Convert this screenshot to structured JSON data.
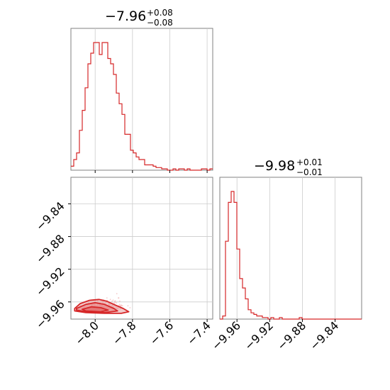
{
  "chart_data": {
    "type": "corner",
    "parameters": [
      {
        "title_main": "−7.96",
        "title_plus": "+0.08",
        "title_minus": "−0.08",
        "range": [
          -8.13,
          -7.37
        ],
        "ticks": [
          -8.0,
          -7.8,
          -7.6,
          -7.4
        ],
        "tick_labels": [
          "−8.0",
          "−7.8",
          "−7.6",
          "−7.4"
        ]
      },
      {
        "title_main": "−9.98",
        "title_plus": "+0.01",
        "title_minus": "−0.01",
        "range": [
          -9.981,
          -9.8075
        ],
        "ticks": [
          -9.96,
          -9.92,
          -9.88,
          -9.84
        ],
        "tick_labels": [
          "−9.96",
          "−9.92",
          "−9.88",
          "−9.84"
        ]
      }
    ],
    "hist1": {
      "bin_start": -8.13,
      "bin_width": 0.0152,
      "values": [
        3,
        8,
        13,
        30,
        45,
        62,
        80,
        88,
        96,
        96,
        87,
        96,
        96,
        84,
        80,
        72,
        58,
        50,
        42,
        27,
        27,
        15,
        13,
        10,
        8,
        8,
        4,
        4,
        4,
        3,
        2,
        2,
        1,
        1,
        0,
        0,
        1,
        0,
        1,
        1,
        0,
        1,
        0,
        0,
        0,
        0,
        1,
        1,
        0,
        1
      ]
    },
    "hist2": {
      "bin_start": -9.981,
      "bin_width": 0.00347,
      "values": [
        0,
        2,
        50,
        75,
        82,
        75,
        45,
        26,
        20,
        13,
        6,
        4,
        3,
        2,
        2,
        1,
        1,
        0,
        1,
        0,
        0,
        1,
        0,
        0,
        0,
        0,
        0,
        0,
        1,
        0,
        0,
        0,
        0,
        0,
        0,
        0,
        0,
        0,
        0,
        0,
        0,
        0,
        0,
        0,
        0,
        0,
        0,
        0,
        0,
        0
      ]
    },
    "joint_contours": [
      {
        "level": "outer",
        "points": [
          [
            -8.11,
            -9.968
          ],
          [
            -8.08,
            -9.962
          ],
          [
            -8.03,
            -9.958
          ],
          [
            -7.98,
            -9.957
          ],
          [
            -7.94,
            -9.959
          ],
          [
            -7.9,
            -9.963
          ],
          [
            -7.85,
            -9.968
          ],
          [
            -7.82,
            -9.972
          ],
          [
            -7.86,
            -9.974
          ],
          [
            -7.95,
            -9.974
          ],
          [
            -8.05,
            -9.973
          ],
          [
            -8.11,
            -9.971
          ]
        ]
      },
      {
        "level": "middle",
        "points": [
          [
            -8.1,
            -9.968
          ],
          [
            -8.05,
            -9.963
          ],
          [
            -8.0,
            -9.961
          ],
          [
            -7.95,
            -9.963
          ],
          [
            -7.9,
            -9.968
          ],
          [
            -7.88,
            -9.971
          ],
          [
            -7.95,
            -9.973
          ],
          [
            -8.05,
            -9.972
          ],
          [
            -8.1,
            -9.97
          ]
        ]
      },
      {
        "level": "inner",
        "points": [
          [
            -8.07,
            -9.969
          ],
          [
            -8.02,
            -9.966
          ],
          [
            -7.97,
            -9.967
          ],
          [
            -7.93,
            -9.97
          ],
          [
            -7.97,
            -9.972
          ],
          [
            -8.05,
            -9.971
          ]
        ]
      }
    ],
    "joint_points_seed": 7,
    "colors": {
      "line": "#d62728",
      "fill": "#e8a0a0",
      "points": "#f2b8b8",
      "axes": "#808080",
      "grid": "#cccccc"
    },
    "grid": true
  }
}
